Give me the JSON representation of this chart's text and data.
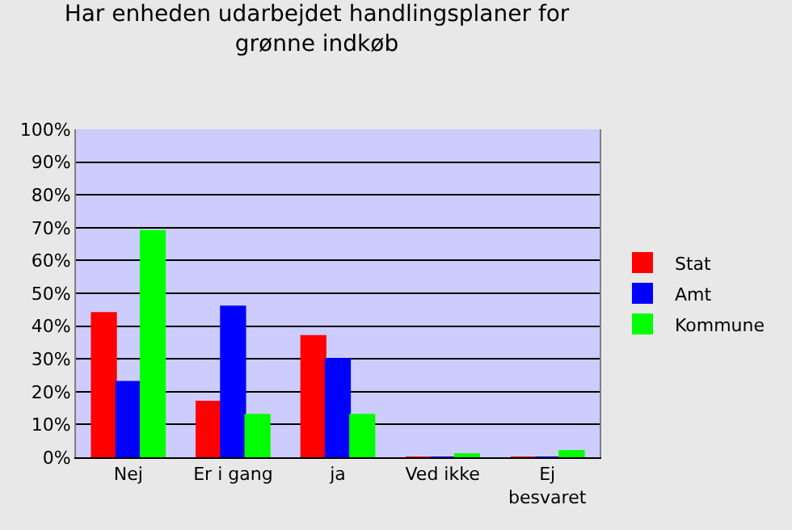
{
  "chart_data": {
    "type": "bar",
    "title": "Har enheden udarbejdet handlingsplaner for\ngrønne indkøb",
    "categories": [
      "Nej",
      "Er i gang",
      "ja",
      "Ved ikke",
      "Ej\nbesvaret"
    ],
    "series": [
      {
        "name": "Stat",
        "color": "#ff0000",
        "values": [
          44,
          17,
          37,
          0,
          0
        ]
      },
      {
        "name": "Amt",
        "color": "#0000ff",
        "values": [
          23,
          46,
          30,
          0,
          0
        ]
      },
      {
        "name": "Kommune",
        "color": "#00ff00",
        "values": [
          69,
          13,
          13,
          1,
          2
        ]
      }
    ],
    "ylim": [
      0,
      100
    ],
    "yticks": [
      {
        "value": 0,
        "label": "0%"
      },
      {
        "value": 10,
        "label": "10%"
      },
      {
        "value": 20,
        "label": "20%"
      },
      {
        "value": 30,
        "label": "30%"
      },
      {
        "value": 40,
        "label": "40%"
      },
      {
        "value": 50,
        "label": "50%"
      },
      {
        "value": 60,
        "label": "60%"
      },
      {
        "value": 70,
        "label": "70%"
      },
      {
        "value": 80,
        "label": "80%"
      },
      {
        "value": 90,
        "label": "90%"
      },
      {
        "value": 100,
        "label": "100%"
      }
    ],
    "grid": "y",
    "legend": "right"
  }
}
